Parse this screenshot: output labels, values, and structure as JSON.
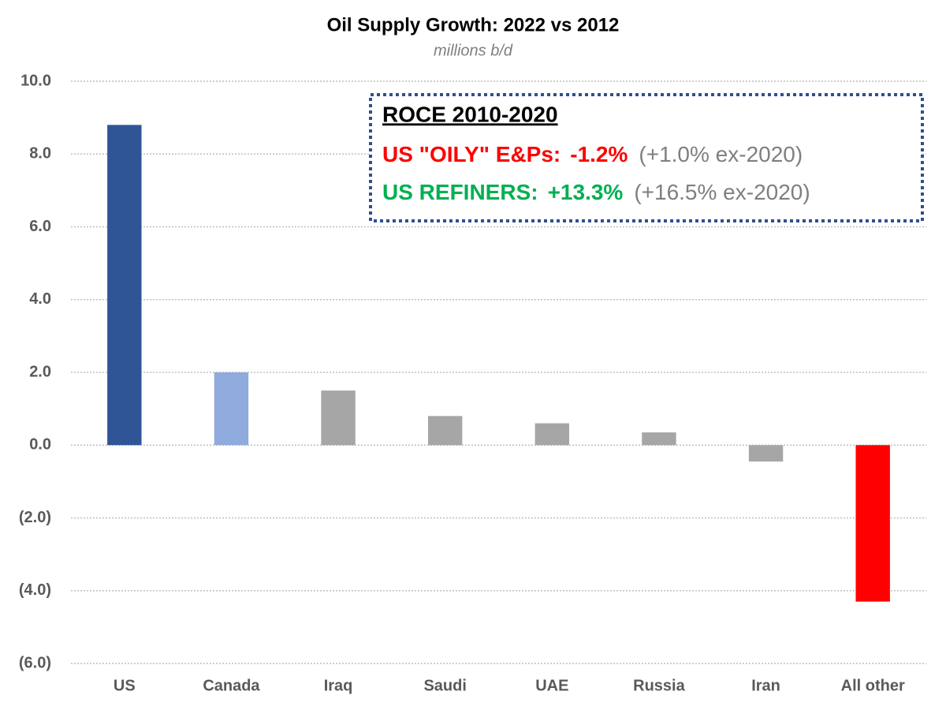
{
  "chart_data": {
    "type": "bar",
    "title": "Oil Supply Growth: 2022 vs 2012",
    "subtitle": "millions b/d",
    "categories": [
      "US",
      "Canada",
      "Iraq",
      "Saudi",
      "UAE",
      "Russia",
      "Iran",
      "All other"
    ],
    "values": [
      8.8,
      2.0,
      1.5,
      0.8,
      0.6,
      0.35,
      -0.45,
      -4.3
    ],
    "colors": [
      "#2f5597",
      "#8faadc",
      "#a6a6a6",
      "#a6a6a6",
      "#a6a6a6",
      "#a6a6a6",
      "#a6a6a6",
      "#ff0000"
    ],
    "ylim": [
      -6,
      10
    ],
    "yticks": [
      {
        "value": -6,
        "label": "(6.0)"
      },
      {
        "value": -4,
        "label": "(4.0)"
      },
      {
        "value": -2,
        "label": "(2.0)"
      },
      {
        "value": 0,
        "label": "0.0"
      },
      {
        "value": 2,
        "label": "2.0"
      },
      {
        "value": 4,
        "label": "4.0"
      },
      {
        "value": 6,
        "label": "6.0"
      },
      {
        "value": 8,
        "label": "8.0"
      },
      {
        "value": 10,
        "label": "10.0"
      }
    ],
    "grid": true,
    "annotation": {
      "title": "ROCE 2010-2020",
      "lines": [
        {
          "label": "US \"OILY\" E&Ps:",
          "value": "-1.2%",
          "note": "(+1.0% ex-2020)",
          "color": "#ff0000"
        },
        {
          "label": "US REFINERS:",
          "value": "+13.3%",
          "note": "(+16.5% ex-2020)",
          "color": "#00b050"
        }
      ]
    }
  }
}
